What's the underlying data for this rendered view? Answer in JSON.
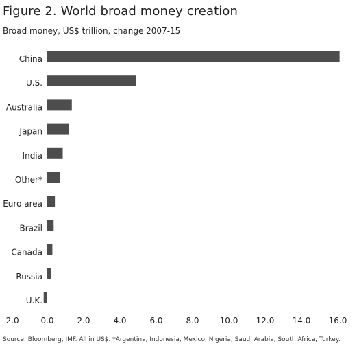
{
  "header": {
    "title": "Figure 2. World broad money creation",
    "subtitle": "Broad money, US$ trillion, change 2007-15"
  },
  "chart_data": {
    "type": "bar",
    "orientation": "horizontal",
    "categories": [
      "China",
      "U.S.",
      "Australia",
      "Japan",
      "India",
      "Other*",
      "Euro area",
      "Brazil",
      "Canada",
      "Russia",
      "U.K."
    ],
    "values": [
      16.1,
      4.9,
      1.35,
      1.2,
      0.85,
      0.7,
      0.42,
      0.35,
      0.28,
      0.2,
      -0.2
    ],
    "xlim": [
      -2.0,
      16.0
    ],
    "xticks": [
      "-2.0",
      "0.0",
      "2.0",
      "4.0",
      "6.0",
      "8.0",
      "10.0",
      "12.0",
      "14.0",
      "16.0"
    ],
    "grid": false,
    "bar_color": "#4d4d4d",
    "legend": "none"
  },
  "footer": {
    "source": "Source: Bloomberg, IMF. All in US$. *Argentina, Indonesia, Mexico, Nigeria, Saudi Arabia, South Africa, Turkey."
  }
}
